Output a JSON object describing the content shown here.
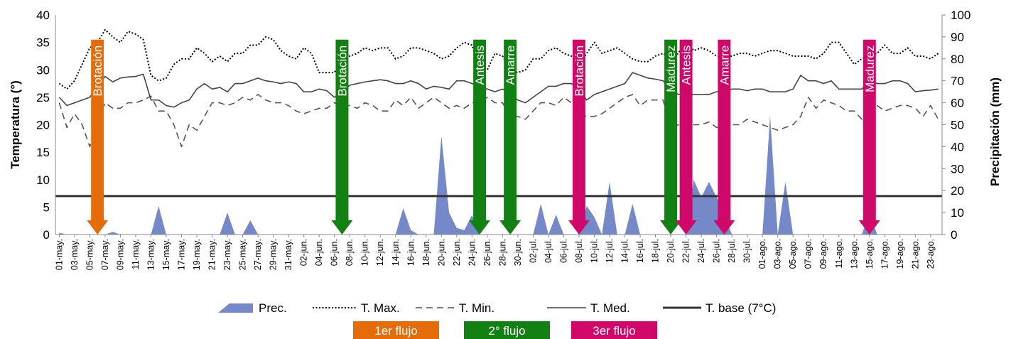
{
  "chart_data": {
    "type": "line",
    "title": "",
    "ylabel_left": "Temperatura (°)",
    "ylabel_right": "Precipitación (mm)",
    "ylim_left": [
      0,
      40
    ],
    "ylim_right": [
      0,
      100
    ],
    "yticks_left": [
      "0",
      "5",
      "10",
      "15",
      "20",
      "25",
      "30",
      "35",
      "40"
    ],
    "yticks_right": [
      "0",
      "10",
      "20",
      "30",
      "40",
      "50",
      "60",
      "70",
      "80",
      "90",
      "100"
    ],
    "x_tick_labels": [
      "01-may.",
      "03-may.",
      "05-may.",
      "07-may.",
      "09-may.",
      "11-may.",
      "13-may.",
      "15-may.",
      "17-may.",
      "19-may.",
      "21-may.",
      "23-may.",
      "25-may.",
      "27-may.",
      "29-may.",
      "31-may.",
      "02-jun.",
      "04-jun.",
      "06-jun.",
      "08-jun.",
      "10-jun.",
      "12-jun.",
      "14-jun.",
      "16-jun.",
      "18-jun.",
      "20-jun.",
      "22-jun.",
      "24-jun.",
      "26-jun.",
      "28-jun.",
      "30-jun.",
      "02-jul.",
      "04-jul.",
      "06-jul.",
      "08-jul.",
      "10-jul.",
      "12-jul.",
      "14-jul.",
      "16-jul.",
      "18-jul.",
      "20-jul.",
      "22-jul.",
      "24-jul.",
      "26-jul.",
      "28-jul.",
      "30-jul.",
      "01-ago.",
      "03-ago.",
      "05-ago.",
      "07-ago.",
      "09-ago.",
      "11-ago.",
      "13-ago.",
      "15-ago.",
      "17-ago.",
      "19-ago.",
      "21-ago.",
      "23-ago."
    ],
    "n_days": 116,
    "series": [
      {
        "name": "T. Max.",
        "style": "dotted",
        "color": "#000000",
        "values": [
          27.5,
          26.5,
          28,
          31,
          34,
          35,
          37.3,
          36,
          35,
          37,
          36.5,
          35.5,
          29,
          28,
          28.5,
          31,
          32,
          32,
          34,
          33,
          31.5,
          32.5,
          31.5,
          33,
          33,
          34.5,
          34.5,
          36,
          35.5,
          33.5,
          32.5,
          32,
          34,
          33,
          29.5,
          29.5,
          29.5,
          32,
          32.5,
          33,
          34,
          33.5,
          34,
          34,
          32,
          32.5,
          34,
          34,
          33.5,
          33,
          32,
          32.5,
          34,
          35,
          34.5,
          30,
          30,
          33,
          32.5,
          30,
          29.5,
          30,
          32,
          32,
          33.5,
          34,
          33,
          32.5,
          31,
          33,
          35,
          33,
          33.5,
          34,
          33,
          32,
          31.5,
          31.5,
          32.5,
          33,
          32,
          33,
          35.5,
          33.5,
          34,
          33.5,
          32.5,
          32.5,
          32.5,
          33,
          33,
          32.5,
          33,
          33.5,
          33.5,
          33,
          32.5,
          32.5,
          32.5,
          32,
          33,
          35,
          35,
          33,
          31,
          32,
          32.5,
          33,
          34.5,
          33,
          33,
          34,
          32.5,
          32.5,
          32,
          33
        ]
      },
      {
        "name": "T. Min.",
        "style": "dashed",
        "color": "#555555",
        "values": [
          24,
          19.5,
          22,
          20,
          16,
          20.5,
          24,
          23,
          23,
          24,
          24,
          24.5,
          25.2,
          22.5,
          22.5,
          20,
          16,
          20,
          19,
          21.5,
          24,
          24,
          23.5,
          24,
          25,
          24.5,
          25.5,
          24.5,
          24,
          24,
          23.5,
          22.5,
          22,
          22.5,
          23,
          23,
          24,
          23.5,
          23.5,
          23,
          24,
          23.5,
          22.5,
          22.5,
          24.5,
          23.5,
          25,
          23,
          24,
          25,
          24,
          23,
          23.5,
          23,
          24,
          24,
          25,
          24,
          24,
          21.5,
          21.5,
          21,
          22.5,
          24,
          24,
          23.5,
          25,
          24,
          22,
          21.5,
          21.5,
          22,
          23,
          24,
          25,
          25.5,
          23.5,
          24.5,
          24.5,
          24.5,
          19.5,
          20,
          19.5,
          20,
          20,
          20.5,
          19.5,
          19.5,
          20,
          20,
          21,
          20.5,
          20,
          19.5,
          19,
          19.5,
          20,
          21.5,
          25,
          23,
          24.5,
          24,
          23.5,
          22.5,
          22.5,
          21,
          24,
          23.5,
          22.5,
          23,
          23.5,
          23.5,
          23,
          21.5,
          23.5,
          21
        ]
      },
      {
        "name": "T. Med.",
        "style": "solid",
        "color": "#444444",
        "values": [
          25,
          23.5,
          24,
          24.5,
          25,
          27,
          28.8,
          27.8,
          28.5,
          28.7,
          28.8,
          29.2,
          24.5,
          24.5,
          23.5,
          23.2,
          24,
          24.5,
          26.5,
          27.5,
          26.5,
          26.8,
          26,
          27.5,
          27.5,
          28,
          28.5,
          28,
          27.8,
          27.5,
          27.8,
          27.5,
          26,
          26,
          26.5,
          26.2,
          25,
          26,
          27.2,
          27.5,
          27.8,
          28,
          28.2,
          28,
          27.5,
          27.5,
          28,
          27.5,
          26.5,
          27,
          26.8,
          26.5,
          28,
          28,
          27.5,
          27,
          26.5,
          26,
          26.5,
          25.5,
          24.5,
          24,
          25,
          26,
          27,
          27,
          27.5,
          27.5,
          26.5,
          24.5,
          25.5,
          26,
          26.5,
          27,
          27.5,
          29.5,
          29,
          28.5,
          28.3,
          28,
          26.5,
          25.5,
          25.5,
          25.5,
          25.5,
          25.5,
          26,
          26,
          26.5,
          26.5,
          26.2,
          26.5,
          26.5,
          26,
          26,
          26,
          26.5,
          29,
          28,
          28,
          27.5,
          28,
          26.5,
          26.5,
          26.5,
          26.5,
          28,
          27.5,
          27.5,
          28,
          28,
          27.5,
          26,
          26.2,
          26.3,
          26.5
        ]
      },
      {
        "name": "T. base (7°C)",
        "style": "solid-thick",
        "color": "#333333",
        "values_constant": 7
      }
    ],
    "precip_series": {
      "name": "Prec.",
      "color": "#7589c8",
      "values": [
        0.8,
        0,
        0,
        0,
        0,
        0,
        0,
        1.2,
        0,
        0,
        0,
        0,
        0,
        13,
        0,
        0,
        0,
        0,
        0,
        0,
        0,
        0,
        10,
        0,
        0,
        6.5,
        0,
        0,
        0,
        0,
        0,
        0,
        0,
        0,
        0,
        0,
        0,
        0,
        0,
        0,
        0,
        0,
        0,
        0,
        0,
        12,
        2,
        0,
        0,
        0,
        45,
        10,
        3,
        2,
        9,
        0,
        0,
        0,
        0,
        0,
        0,
        0,
        0,
        14,
        0,
        9,
        0,
        0,
        0,
        13,
        8,
        0,
        24,
        0,
        0,
        14,
        0,
        0,
        0,
        0,
        0,
        0,
        0,
        25,
        17,
        24,
        17,
        9,
        0,
        0,
        0,
        0,
        0,
        54,
        0,
        24,
        0,
        0,
        0,
        0,
        0,
        0,
        0,
        0,
        0,
        0,
        10,
        0,
        0,
        0,
        0,
        0,
        0,
        0,
        0,
        0
      ]
    },
    "stage_arrows": [
      {
        "label": "Brotación",
        "day": 5,
        "flow": 1
      },
      {
        "label": "Brotación",
        "day": 37,
        "flow": 2
      },
      {
        "label": "Antesis",
        "day": 55,
        "flow": 2
      },
      {
        "label": "Amarre",
        "day": 59,
        "flow": 2
      },
      {
        "label": "Madurez",
        "day": 80,
        "flow": 2
      },
      {
        "label": "Brotación",
        "day": 68,
        "flow": 3
      },
      {
        "label": "Antesis",
        "day": 82,
        "flow": 3
      },
      {
        "label": "Amarre",
        "day": 87,
        "flow": 3
      },
      {
        "label": "Madurez",
        "day": 106,
        "flow": 3
      }
    ],
    "flows": [
      {
        "label": "1er flujo",
        "color": "#e46c0a"
      },
      {
        "label": "2° flujo",
        "color": "#138013"
      },
      {
        "label": "3er flujo",
        "color": "#d0086a"
      }
    ],
    "grid": "horizontal",
    "legend_position": "bottom"
  }
}
